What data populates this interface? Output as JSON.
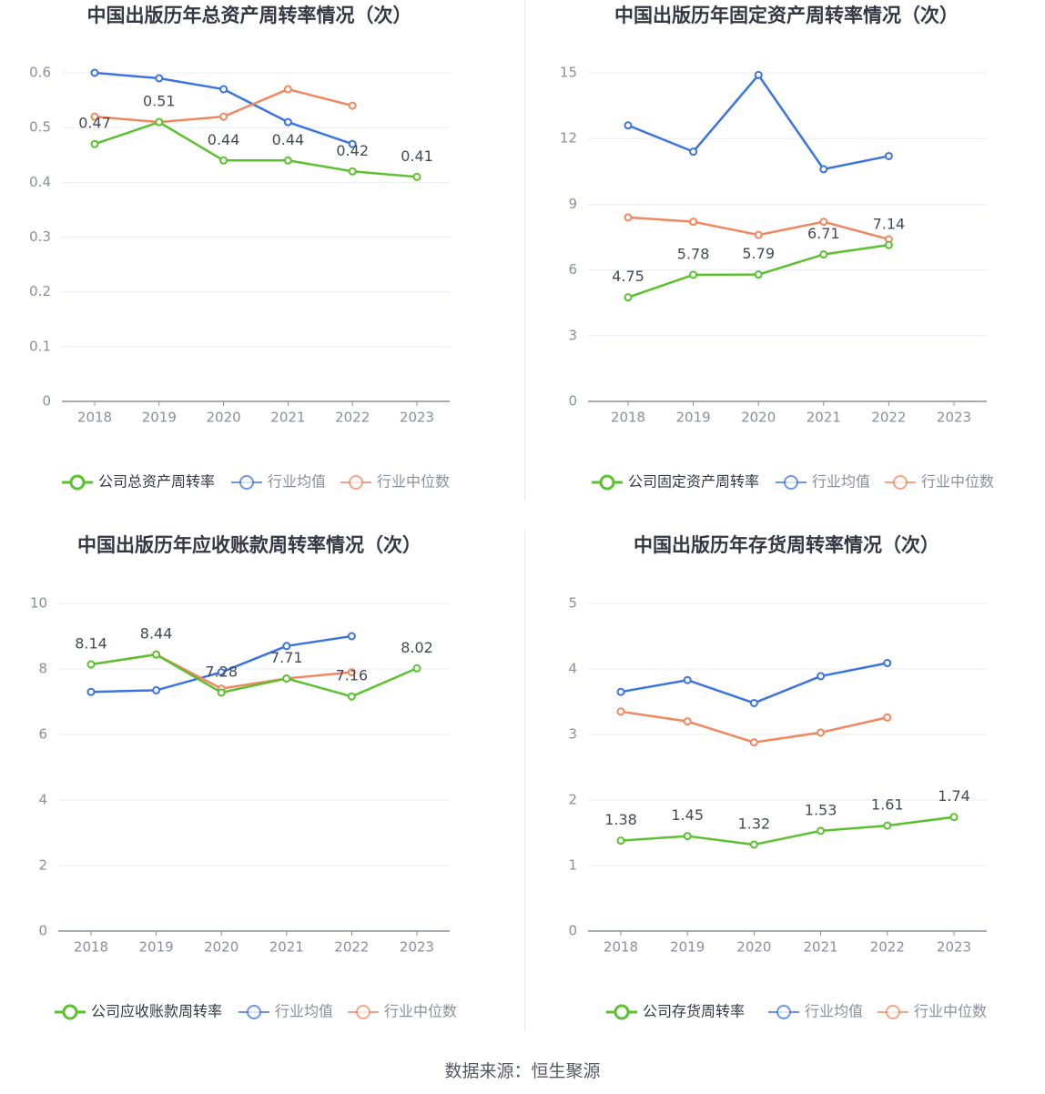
{
  "source_text": "数据来源：恒生聚源",
  "colors": {
    "company": "#5bc12f",
    "avg": "#3b74e0",
    "median": "#f0875f",
    "grid": "#e8ebf2",
    "axis": "#8a8f99",
    "tick": "#8a8f99",
    "label": "#444a55"
  },
  "chart_data": [
    {
      "type": "line",
      "title": "中国出版历年总资产周转率情况（次）",
      "categories": [
        "2018",
        "2019",
        "2020",
        "2021",
        "2022",
        "2023"
      ],
      "ylim": [
        0,
        0.6
      ],
      "yticks": [
        "0",
        "0.1",
        "0.2",
        "0.3",
        "0.4",
        "0.5",
        "0.6"
      ],
      "series": [
        {
          "name": "公司总资产周转率",
          "values": [
            0.47,
            0.51,
            0.44,
            0.44,
            0.42,
            0.41
          ],
          "labels": [
            "0.47",
            "0.51",
            "0.44",
            "0.44",
            "0.42",
            "0.41"
          ]
        },
        {
          "name": "行业均值",
          "values": [
            0.6,
            0.59,
            0.57,
            0.51,
            0.47,
            null
          ]
        },
        {
          "name": "行业中位数",
          "values": [
            0.52,
            0.51,
            0.52,
            0.57,
            0.54,
            null
          ]
        }
      ]
    },
    {
      "type": "line",
      "title": "中国出版历年固定资产周转率情况（次）",
      "categories": [
        "2018",
        "2019",
        "2020",
        "2021",
        "2022",
        "2023"
      ],
      "ylim": [
        0,
        15
      ],
      "yticks": [
        "0",
        "3",
        "6",
        "9",
        "12",
        "15"
      ],
      "series": [
        {
          "name": "公司固定资产周转率",
          "values": [
            4.75,
            5.78,
            5.79,
            6.71,
            7.14,
            null
          ],
          "labels": [
            "4.75",
            "5.78",
            "5.79",
            "6.71",
            "7.14",
            ""
          ]
        },
        {
          "name": "行业均值",
          "values": [
            12.6,
            11.4,
            14.9,
            10.6,
            11.2,
            null
          ]
        },
        {
          "name": "行业中位数",
          "values": [
            8.4,
            8.2,
            7.6,
            8.2,
            7.4,
            null
          ]
        }
      ]
    },
    {
      "type": "line",
      "title": "中国出版历年应收账款周转率情况（次）",
      "categories": [
        "2018",
        "2019",
        "2020",
        "2021",
        "2022",
        "2023"
      ],
      "ylim": [
        0,
        10
      ],
      "yticks": [
        "0",
        "2",
        "4",
        "6",
        "8",
        "10"
      ],
      "series": [
        {
          "name": "公司应收账款周转率",
          "values": [
            8.14,
            8.44,
            7.28,
            7.71,
            7.16,
            8.02
          ],
          "labels": [
            "8.14",
            "8.44",
            "7.28",
            "7.71",
            "7.16",
            "8.02"
          ]
        },
        {
          "name": "行业均值",
          "values": [
            7.3,
            7.35,
            7.9,
            8.7,
            9.0,
            null
          ]
        },
        {
          "name": "行业中位数",
          "values": [
            8.14,
            8.44,
            7.4,
            7.71,
            7.9,
            null
          ]
        }
      ]
    },
    {
      "type": "line",
      "title": "中国出版历年存货周转率情况（次）",
      "categories": [
        "2018",
        "2019",
        "2020",
        "2021",
        "2022",
        "2023"
      ],
      "ylim": [
        0,
        5
      ],
      "yticks": [
        "0",
        "1",
        "2",
        "3",
        "4",
        "5"
      ],
      "series": [
        {
          "name": "公司存货周转率",
          "values": [
            1.38,
            1.45,
            1.32,
            1.53,
            1.61,
            1.74
          ],
          "labels": [
            "1.38",
            "1.45",
            "1.32",
            "1.53",
            "1.61",
            "1.74"
          ]
        },
        {
          "name": "行业均值",
          "values": [
            3.65,
            3.83,
            3.48,
            3.89,
            4.09,
            null
          ]
        },
        {
          "name": "行业中位数",
          "values": [
            3.35,
            3.2,
            2.88,
            3.03,
            3.26,
            null
          ]
        }
      ]
    }
  ]
}
